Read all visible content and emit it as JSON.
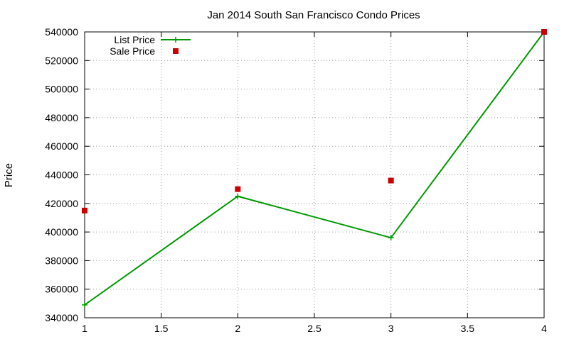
{
  "chart_data": {
    "type": "line",
    "title": "Jan 2014 South San Francisco Condo Prices",
    "xlabel": "",
    "ylabel": "Price",
    "xlim": [
      1,
      4
    ],
    "ylim": [
      340000,
      540000
    ],
    "x_ticks": [
      1,
      1.5,
      2,
      2.5,
      3,
      3.5,
      4
    ],
    "x_tick_labels": [
      "1",
      "1.5",
      "2",
      "2.5",
      "3",
      "3.5",
      "4"
    ],
    "y_ticks": [
      340000,
      360000,
      380000,
      400000,
      420000,
      440000,
      460000,
      480000,
      500000,
      520000,
      540000
    ],
    "y_tick_labels": [
      "340000",
      "360000",
      "380000",
      "400000",
      "420000",
      "440000",
      "460000",
      "480000",
      "500000",
      "520000",
      "540000"
    ],
    "grid": true,
    "legend_position": "top-left",
    "series": [
      {
        "name": "List Price",
        "style": "line-with-plus-markers",
        "color": "#009900",
        "x": [
          1,
          2,
          3,
          4
        ],
        "y": [
          349000,
          425000,
          396000,
          540000
        ]
      },
      {
        "name": "Sale Price",
        "style": "square-points",
        "color": "#cc0000",
        "x": [
          1,
          2,
          3,
          4
        ],
        "y": [
          415000,
          430000,
          436000,
          540000
        ]
      }
    ]
  }
}
